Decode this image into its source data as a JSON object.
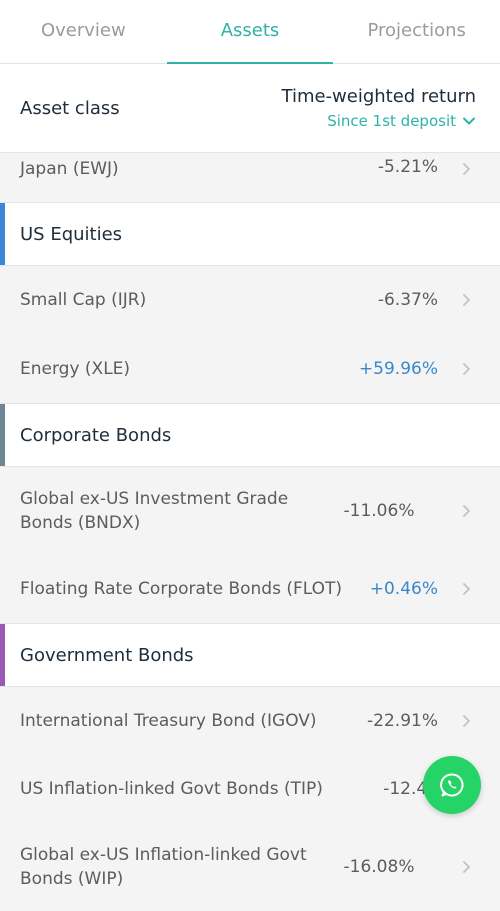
{
  "tabs": [
    {
      "label": "Overview",
      "active": false
    },
    {
      "label": "Assets",
      "active": true
    },
    {
      "label": "Projections",
      "active": false
    }
  ],
  "header": {
    "left": "Asset class",
    "right_title": "Time-weighted return",
    "right_sub": "Since 1st deposit"
  },
  "rows": {
    "japan": {
      "name": "Japan (EWJ)",
      "value": "-5.21%"
    },
    "small_cap": {
      "name": "Small Cap (IJR)",
      "value": "-6.37%"
    },
    "energy": {
      "name": "Energy (XLE)",
      "value": "+59.96%"
    },
    "bndx": {
      "name": "Global ex-US Investment Grade Bonds (BNDX)",
      "value": "-11.06%"
    },
    "flot": {
      "name": "Floating Rate Corporate Bonds (FLOT)",
      "value": "+0.46%"
    },
    "igov": {
      "name": "International Treasury Bond (IGOV)",
      "value": "-22.91%"
    },
    "tip": {
      "name": "US Inflation-linked Govt Bonds (TIP)",
      "value": "-12.46"
    },
    "wip": {
      "name": "Global ex-US Inflation-linked Govt Bonds (WIP)",
      "value": "-16.08%"
    }
  },
  "groups": {
    "us_equities": {
      "label": "US Equities",
      "color": "#3b86d6"
    },
    "corporate_bonds": {
      "label": "Corporate Bonds",
      "color": "#6f8695"
    },
    "government_bonds": {
      "label": "Government Bonds",
      "color": "#9b59b6"
    }
  },
  "colors": {
    "accent": "#2fb3a6",
    "positive": "#3a87c9",
    "whatsapp": "#25d366"
  },
  "fab": {
    "icon": "whatsapp-icon"
  }
}
